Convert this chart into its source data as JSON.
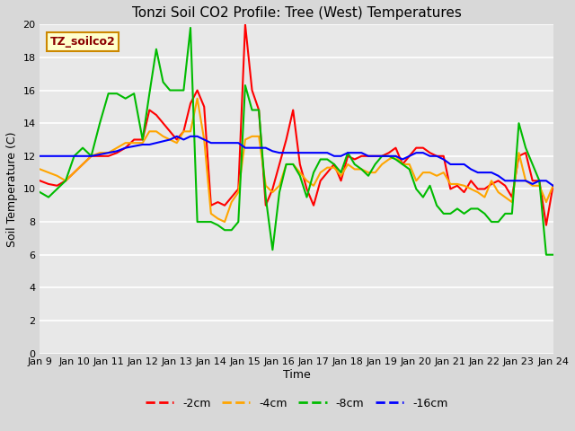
{
  "title": "Tonzi Soil CO2 Profile: Tree (West) Temperatures",
  "xlabel": "Time",
  "ylabel": "Soil Temperature (C)",
  "ylim": [
    0,
    20
  ],
  "yticks": [
    0,
    2,
    4,
    6,
    8,
    10,
    12,
    14,
    16,
    18,
    20
  ],
  "xtick_labels": [
    "Jan 9",
    "Jan 10",
    "Jan 11",
    "Jan 12",
    "Jan 13",
    "Jan 14",
    "Jan 15",
    "Jan 16",
    "Jan 17",
    "Jan 18",
    "Jan 19",
    "Jan 20",
    "Jan 21",
    "Jan 22",
    "Jan 23",
    "Jan 24"
  ],
  "background_color": "#d8d8d8",
  "plot_bg_color": "#e8e8e8",
  "grid_color": "#ffffff",
  "legend_label": "TZ_soilco2",
  "legend_bg": "#ffffcc",
  "legend_border": "#cc8800",
  "series_order": [
    "-2cm",
    "-4cm",
    "-8cm",
    "-16cm"
  ],
  "series": {
    "-2cm": {
      "color": "#ff0000",
      "x": [
        0,
        0.25,
        0.5,
        0.75,
        1.0,
        1.25,
        1.5,
        1.75,
        2.0,
        2.25,
        2.5,
        2.75,
        3.0,
        3.2,
        3.4,
        3.6,
        3.8,
        4.0,
        4.2,
        4.4,
        4.6,
        4.8,
        5.0,
        5.2,
        5.4,
        5.6,
        5.8,
        6.0,
        6.2,
        6.4,
        6.6,
        6.8,
        7.0,
        7.2,
        7.4,
        7.6,
        7.8,
        8.0,
        8.2,
        8.4,
        8.6,
        8.8,
        9.0,
        9.2,
        9.4,
        9.6,
        9.8,
        10.0,
        10.2,
        10.4,
        10.6,
        10.8,
        11.0,
        11.2,
        11.4,
        11.6,
        11.8,
        12.0,
        12.2,
        12.4,
        12.6,
        12.8,
        13.0,
        13.2,
        13.4,
        13.6,
        13.8,
        14.0,
        14.2,
        14.4,
        14.6,
        14.8,
        15.0
      ],
      "y": [
        10.5,
        10.3,
        10.2,
        10.5,
        11.0,
        11.5,
        12.0,
        12.0,
        12.0,
        12.2,
        12.5,
        13.0,
        13.0,
        14.8,
        14.5,
        14.0,
        13.5,
        13.0,
        13.5,
        15.2,
        16.0,
        15.0,
        9.0,
        9.2,
        9.0,
        9.5,
        10.0,
        20.0,
        16.0,
        14.8,
        9.0,
        10.0,
        11.5,
        13.0,
        14.8,
        11.5,
        10.0,
        9.0,
        10.5,
        11.0,
        11.5,
        10.5,
        12.0,
        11.8,
        12.0,
        12.0,
        12.0,
        12.0,
        12.2,
        12.5,
        11.5,
        12.0,
        12.5,
        12.5,
        12.2,
        12.0,
        12.0,
        10.0,
        10.2,
        9.8,
        10.5,
        10.0,
        10.0,
        10.3,
        10.5,
        10.2,
        9.5,
        12.0,
        12.2,
        10.5,
        10.5,
        7.8,
        10.2
      ]
    },
    "-4cm": {
      "color": "#ffa500",
      "x": [
        0,
        0.25,
        0.5,
        0.75,
        1.0,
        1.25,
        1.5,
        1.75,
        2.0,
        2.25,
        2.5,
        2.75,
        3.0,
        3.2,
        3.4,
        3.6,
        3.8,
        4.0,
        4.2,
        4.4,
        4.6,
        4.8,
        5.0,
        5.2,
        5.4,
        5.6,
        5.8,
        6.0,
        6.2,
        6.4,
        6.6,
        6.8,
        7.0,
        7.2,
        7.4,
        7.6,
        7.8,
        8.0,
        8.2,
        8.4,
        8.6,
        8.8,
        9.0,
        9.2,
        9.4,
        9.6,
        9.8,
        10.0,
        10.2,
        10.4,
        10.6,
        10.8,
        11.0,
        11.2,
        11.4,
        11.6,
        11.8,
        12.0,
        12.2,
        12.4,
        12.6,
        12.8,
        13.0,
        13.2,
        13.4,
        13.6,
        13.8,
        14.0,
        14.2,
        14.4,
        14.6,
        14.8,
        15.0
      ],
      "y": [
        11.2,
        11.0,
        10.8,
        10.5,
        11.0,
        11.5,
        12.0,
        12.2,
        12.2,
        12.5,
        12.8,
        12.8,
        12.8,
        13.5,
        13.5,
        13.2,
        13.0,
        12.8,
        13.5,
        13.5,
        15.5,
        13.0,
        8.5,
        8.2,
        8.0,
        9.2,
        9.8,
        13.0,
        13.2,
        13.2,
        10.2,
        9.8,
        10.2,
        11.5,
        11.5,
        11.0,
        10.5,
        10.2,
        11.0,
        11.3,
        11.3,
        10.8,
        11.5,
        11.2,
        11.2,
        11.0,
        11.0,
        11.5,
        11.8,
        12.0,
        11.5,
        11.5,
        10.5,
        11.0,
        11.0,
        10.8,
        11.0,
        10.3,
        10.3,
        10.2,
        10.0,
        9.8,
        9.5,
        10.5,
        9.8,
        9.5,
        9.2,
        12.2,
        10.5,
        10.2,
        10.2,
        9.2,
        10.2
      ]
    },
    "-8cm": {
      "color": "#00bb00",
      "x": [
        0,
        0.25,
        0.5,
        0.75,
        1.0,
        1.25,
        1.5,
        1.75,
        2.0,
        2.25,
        2.5,
        2.75,
        3.0,
        3.2,
        3.4,
        3.6,
        3.8,
        4.0,
        4.2,
        4.4,
        4.6,
        4.8,
        5.0,
        5.2,
        5.4,
        5.6,
        5.8,
        6.0,
        6.2,
        6.4,
        6.6,
        6.8,
        7.0,
        7.2,
        7.4,
        7.6,
        7.8,
        8.0,
        8.2,
        8.4,
        8.6,
        8.8,
        9.0,
        9.2,
        9.4,
        9.6,
        9.8,
        10.0,
        10.2,
        10.4,
        10.6,
        10.8,
        11.0,
        11.2,
        11.4,
        11.6,
        11.8,
        12.0,
        12.2,
        12.4,
        12.6,
        12.8,
        13.0,
        13.2,
        13.4,
        13.6,
        13.8,
        14.0,
        14.2,
        14.4,
        14.6,
        14.8,
        15.0
      ],
      "y": [
        9.8,
        9.5,
        10.0,
        10.5,
        12.0,
        12.5,
        12.0,
        14.0,
        15.8,
        15.8,
        15.5,
        15.8,
        13.0,
        15.8,
        18.5,
        16.5,
        16.0,
        16.0,
        16.0,
        19.8,
        8.0,
        8.0,
        8.0,
        7.8,
        7.5,
        7.5,
        8.0,
        16.3,
        14.8,
        14.8,
        9.5,
        6.3,
        9.8,
        11.5,
        11.5,
        10.8,
        9.5,
        11.0,
        11.8,
        11.8,
        11.5,
        11.0,
        12.2,
        11.5,
        11.2,
        10.8,
        11.5,
        12.0,
        12.0,
        11.8,
        11.5,
        11.2,
        10.0,
        9.5,
        10.2,
        9.0,
        8.5,
        8.5,
        8.8,
        8.5,
        8.8,
        8.8,
        8.5,
        8.0,
        8.0,
        8.5,
        8.5,
        14.0,
        12.5,
        11.5,
        10.5,
        6.0,
        6.0
      ]
    },
    "-16cm": {
      "color": "#0000ff",
      "x": [
        0,
        0.25,
        0.5,
        0.75,
        1.0,
        1.25,
        1.5,
        1.75,
        2.0,
        2.25,
        2.5,
        2.75,
        3.0,
        3.2,
        3.4,
        3.6,
        3.8,
        4.0,
        4.2,
        4.4,
        4.6,
        4.8,
        5.0,
        5.2,
        5.4,
        5.6,
        5.8,
        6.0,
        6.2,
        6.4,
        6.6,
        6.8,
        7.0,
        7.2,
        7.4,
        7.6,
        7.8,
        8.0,
        8.2,
        8.4,
        8.6,
        8.8,
        9.0,
        9.2,
        9.4,
        9.6,
        9.8,
        10.0,
        10.2,
        10.4,
        10.6,
        10.8,
        11.0,
        11.2,
        11.4,
        11.6,
        11.8,
        12.0,
        12.2,
        12.4,
        12.6,
        12.8,
        13.0,
        13.2,
        13.4,
        13.6,
        13.8,
        14.0,
        14.2,
        14.4,
        14.6,
        14.8,
        15.0
      ],
      "y": [
        12.0,
        12.0,
        12.0,
        12.0,
        12.0,
        12.0,
        12.0,
        12.1,
        12.2,
        12.3,
        12.5,
        12.6,
        12.7,
        12.7,
        12.8,
        12.9,
        13.0,
        13.2,
        13.0,
        13.2,
        13.2,
        13.0,
        12.8,
        12.8,
        12.8,
        12.8,
        12.8,
        12.5,
        12.5,
        12.5,
        12.5,
        12.3,
        12.2,
        12.2,
        12.2,
        12.2,
        12.2,
        12.2,
        12.2,
        12.2,
        12.0,
        12.0,
        12.2,
        12.2,
        12.2,
        12.0,
        12.0,
        12.0,
        12.0,
        12.0,
        11.8,
        12.0,
        12.2,
        12.2,
        12.0,
        12.0,
        11.8,
        11.5,
        11.5,
        11.5,
        11.2,
        11.0,
        11.0,
        11.0,
        10.8,
        10.5,
        10.5,
        10.5,
        10.5,
        10.3,
        10.5,
        10.5,
        10.2
      ]
    }
  }
}
